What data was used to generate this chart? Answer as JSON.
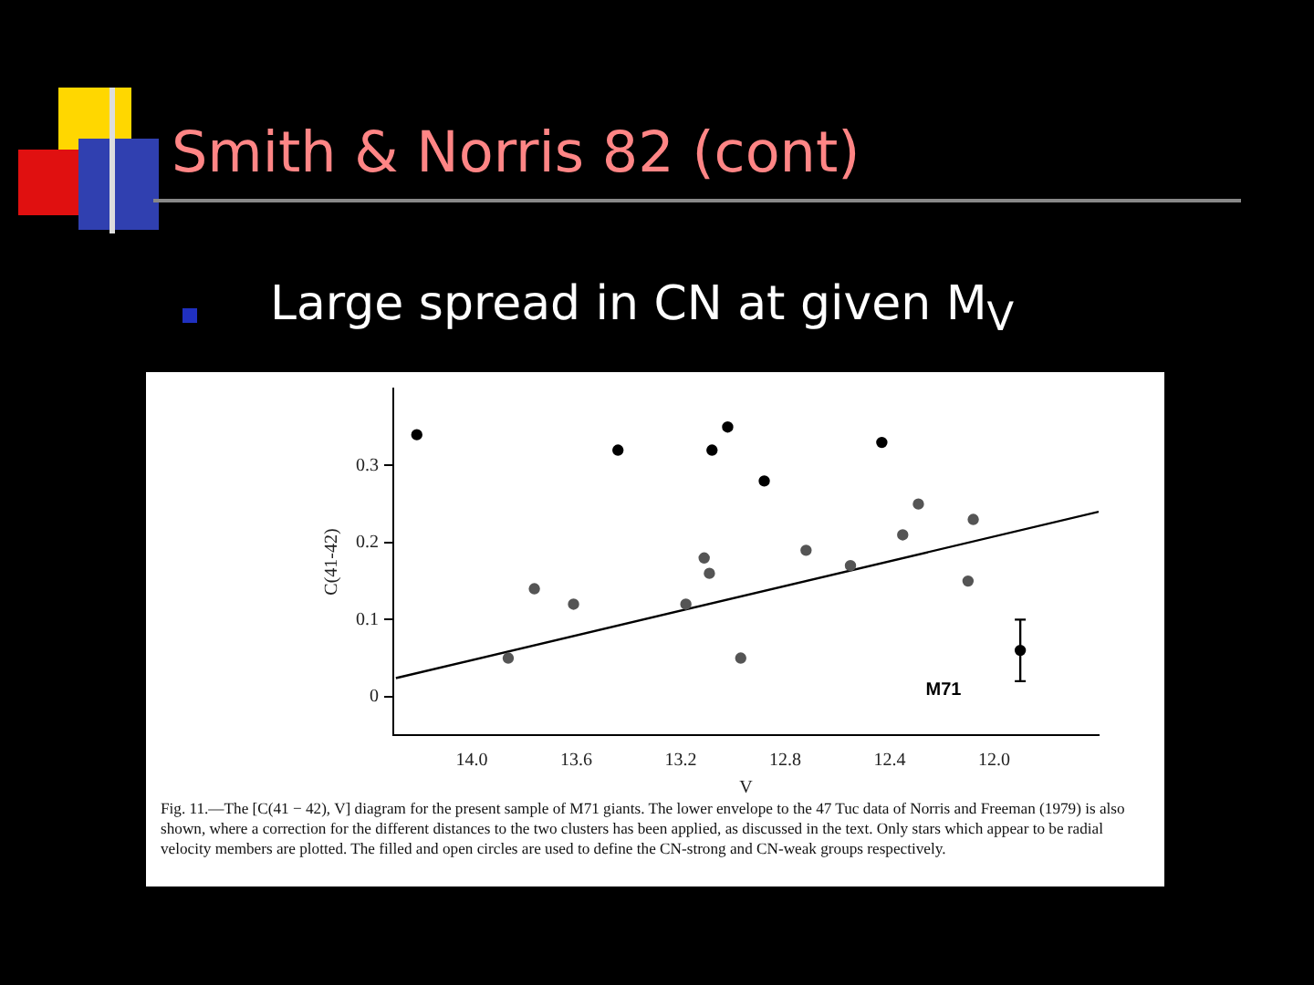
{
  "chart_data": {
    "type": "scatter",
    "title": "Smith & Norris 82 (cont)",
    "subtitle": "Large spread in CN at given M$_{V}$",
    "xlabel": "V",
    "ylabel": "C(41-42)",
    "series": [
      {
        "color": "#000000",
        "marker": "circle",
        "x": [
          14.21,
          13.44,
          13.08,
          13.02,
          12.88,
          12.43
        ],
        "values": [
          0.34,
          0.32,
          0.32,
          0.35,
          0.28,
          0.33
        ]
      },
      {
        "color": "#555555",
        "marker": "circle",
        "x": [
          13.86,
          13.76,
          13.61,
          13.18,
          13.11,
          13.09,
          12.97,
          12.72,
          12.55,
          12.35,
          12.29,
          12.1,
          12.08
        ],
        "values": [
          0.05,
          0.14,
          0.12,
          0.12,
          0.18,
          0.16,
          0.05,
          0.19,
          0.17,
          0.21,
          0.25,
          0.15,
          0.23
        ]
      },
      {
        "type": "line",
        "color": "#000000",
        "marker": "none",
        "x": [
          14.29,
          11.6
        ],
        "values": [
          0.024,
          0.24
        ]
      },
      {
        "color": "#000000",
        "marker": "circle",
        "x": [
          11.9
        ],
        "values": [
          0.06
        ],
        "errors": [
          0.04
        ]
      }
    ],
    "xlim": [
      14.3,
      11.6
    ],
    "xticks": [
      {
        "value": 14.0,
        "label": "14.0"
      },
      13.6,
      13.2,
      12.8,
      12.4,
      {
        "value": 12.0,
        "label": "12.0"
      }
    ],
    "ylim": [
      -0.05,
      0.4
    ],
    "yticks": [
      0,
      0.1,
      0.2,
      0.3
    ],
    "grid": false,
    "legend": false,
    "annotations": [
      "M71",
      "Fig. 11.—The [C(41 − 42), V] diagram for the present sample of M71 giants. The lower envelope to the 47 Tuc data of Norris and Freeman (1979) is also shown, where a correction for the different distances to the two clusters has been applied, as discussed in the text. Only stars which appear to be radial velocity members are plotted. The filled and open circles are used to define the CN-strong and CN-weak groups respectively."
    ]
  }
}
